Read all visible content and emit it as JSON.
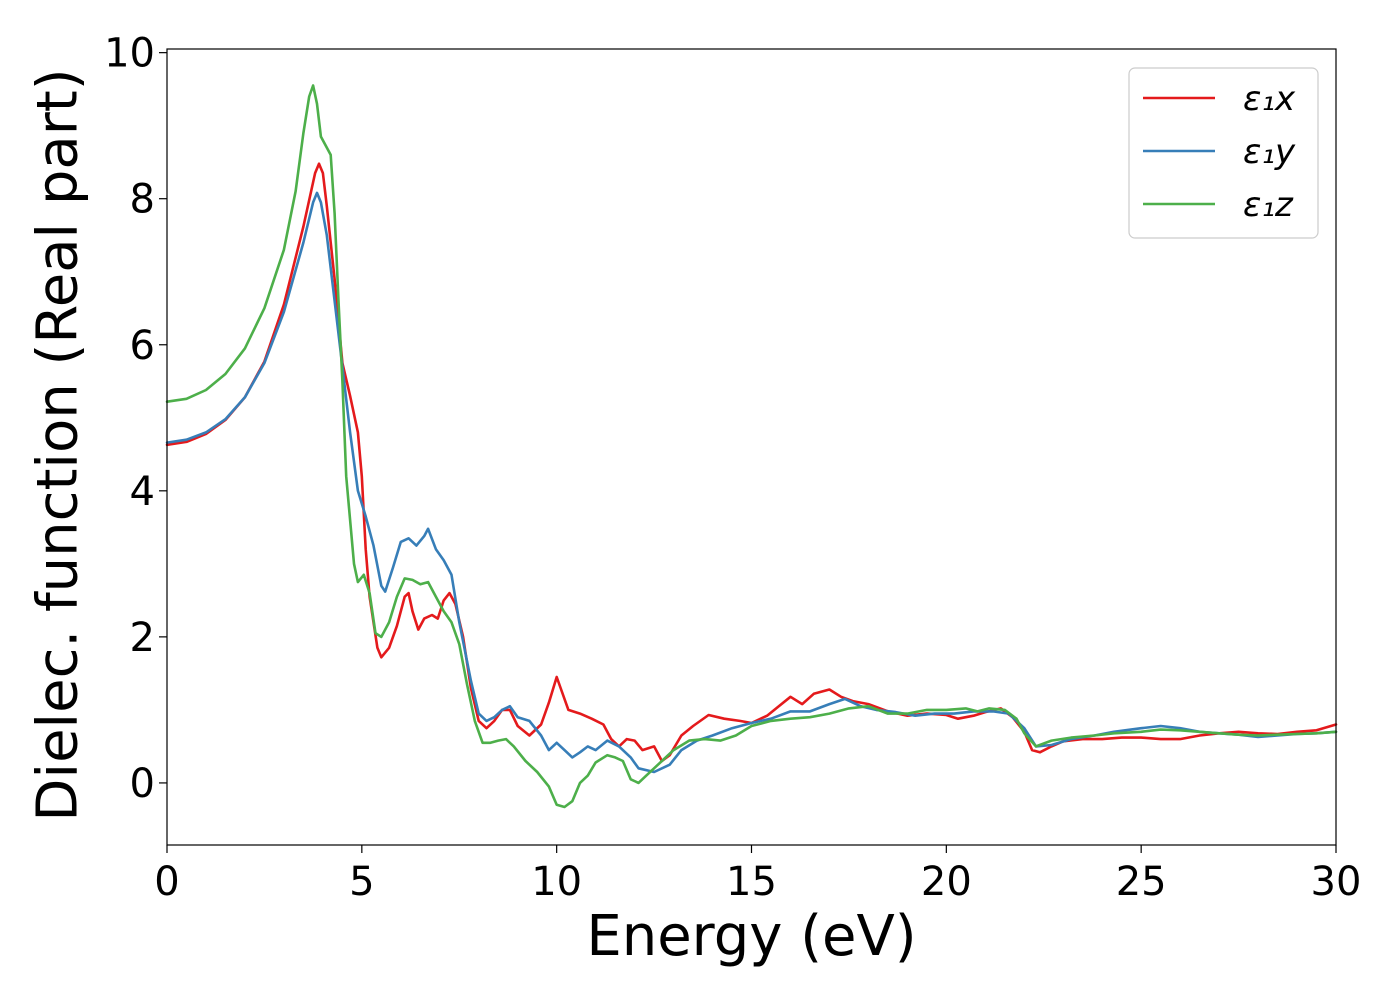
{
  "chart_data": {
    "type": "line",
    "xlabel": "Energy (eV)",
    "ylabel": "Dielec. function (Real part)",
    "xlim": [
      0,
      30
    ],
    "ylim": [
      -0.85,
      10.05
    ],
    "xticks": [
      0,
      5,
      10,
      15,
      20,
      25,
      30
    ],
    "xtick_labels": [
      "0",
      "5",
      "10",
      "15",
      "20",
      "25",
      "30"
    ],
    "yticks": [
      0,
      2,
      4,
      6,
      8,
      10
    ],
    "ytick_labels": [
      "0",
      "2",
      "4",
      "6",
      "8",
      "10"
    ],
    "grid": false,
    "legend_position": "top-right",
    "series": [
      {
        "name": "ε₁x",
        "color": "#e41a1c",
        "points": [
          [
            0,
            4.63
          ],
          [
            0.5,
            4.67
          ],
          [
            1,
            4.78
          ],
          [
            1.5,
            4.97
          ],
          [
            2,
            5.28
          ],
          [
            2.5,
            5.77
          ],
          [
            3,
            6.55
          ],
          [
            3.5,
            7.62
          ],
          [
            3.8,
            8.35
          ],
          [
            3.9,
            8.48
          ],
          [
            4.0,
            8.35
          ],
          [
            4.1,
            7.9
          ],
          [
            4.3,
            6.9
          ],
          [
            4.5,
            5.75
          ],
          [
            4.7,
            5.3
          ],
          [
            4.9,
            4.8
          ],
          [
            5.0,
            4.2
          ],
          [
            5.1,
            3.2
          ],
          [
            5.2,
            2.55
          ],
          [
            5.4,
            1.85
          ],
          [
            5.5,
            1.72
          ],
          [
            5.7,
            1.85
          ],
          [
            5.9,
            2.15
          ],
          [
            6.1,
            2.55
          ],
          [
            6.2,
            2.6
          ],
          [
            6.3,
            2.35
          ],
          [
            6.45,
            2.1
          ],
          [
            6.6,
            2.25
          ],
          [
            6.8,
            2.3
          ],
          [
            6.95,
            2.25
          ],
          [
            7.1,
            2.5
          ],
          [
            7.25,
            2.6
          ],
          [
            7.4,
            2.45
          ],
          [
            7.6,
            2.0
          ],
          [
            7.8,
            1.3
          ],
          [
            8.0,
            0.85
          ],
          [
            8.2,
            0.75
          ],
          [
            8.4,
            0.85
          ],
          [
            8.6,
            1.0
          ],
          [
            8.8,
            1.0
          ],
          [
            9.0,
            0.78
          ],
          [
            9.3,
            0.65
          ],
          [
            9.6,
            0.8
          ],
          [
            9.8,
            1.1
          ],
          [
            10.0,
            1.45
          ],
          [
            10.1,
            1.3
          ],
          [
            10.3,
            1.0
          ],
          [
            10.6,
            0.95
          ],
          [
            10.9,
            0.88
          ],
          [
            11.2,
            0.8
          ],
          [
            11.4,
            0.6
          ],
          [
            11.6,
            0.5
          ],
          [
            11.8,
            0.6
          ],
          [
            12.0,
            0.58
          ],
          [
            12.2,
            0.45
          ],
          [
            12.5,
            0.5
          ],
          [
            12.7,
            0.3
          ],
          [
            12.9,
            0.38
          ],
          [
            13.2,
            0.65
          ],
          [
            13.5,
            0.78
          ],
          [
            13.9,
            0.93
          ],
          [
            14.3,
            0.88
          ],
          [
            14.7,
            0.85
          ],
          [
            15.0,
            0.82
          ],
          [
            15.4,
            0.92
          ],
          [
            15.7,
            1.05
          ],
          [
            16.0,
            1.18
          ],
          [
            16.3,
            1.08
          ],
          [
            16.6,
            1.22
          ],
          [
            17.0,
            1.28
          ],
          [
            17.3,
            1.18
          ],
          [
            17.6,
            1.12
          ],
          [
            18.0,
            1.08
          ],
          [
            18.5,
            0.98
          ],
          [
            19.0,
            0.92
          ],
          [
            19.5,
            0.95
          ],
          [
            20.0,
            0.93
          ],
          [
            20.3,
            0.88
          ],
          [
            20.7,
            0.92
          ],
          [
            21.0,
            0.97
          ],
          [
            21.4,
            1.02
          ],
          [
            21.7,
            0.9
          ],
          [
            22.0,
            0.7
          ],
          [
            22.2,
            0.45
          ],
          [
            22.4,
            0.42
          ],
          [
            22.7,
            0.5
          ],
          [
            23.0,
            0.57
          ],
          [
            23.5,
            0.6
          ],
          [
            24.0,
            0.6
          ],
          [
            24.5,
            0.62
          ],
          [
            25.0,
            0.62
          ],
          [
            25.5,
            0.6
          ],
          [
            26.0,
            0.6
          ],
          [
            26.5,
            0.65
          ],
          [
            27.0,
            0.68
          ],
          [
            27.5,
            0.7
          ],
          [
            28.0,
            0.68
          ],
          [
            28.5,
            0.67
          ],
          [
            29.0,
            0.7
          ],
          [
            29.5,
            0.72
          ],
          [
            30.0,
            0.8
          ]
        ]
      },
      {
        "name": "ε₁y",
        "color": "#377eb8",
        "points": [
          [
            0,
            4.66
          ],
          [
            0.5,
            4.7
          ],
          [
            1,
            4.8
          ],
          [
            1.5,
            4.98
          ],
          [
            2,
            5.28
          ],
          [
            2.5,
            5.75
          ],
          [
            3,
            6.45
          ],
          [
            3.5,
            7.4
          ],
          [
            3.75,
            7.95
          ],
          [
            3.85,
            8.08
          ],
          [
            3.95,
            7.95
          ],
          [
            4.1,
            7.5
          ],
          [
            4.3,
            6.6
          ],
          [
            4.5,
            5.7
          ],
          [
            4.7,
            4.8
          ],
          [
            4.9,
            4.0
          ],
          [
            5.1,
            3.65
          ],
          [
            5.3,
            3.25
          ],
          [
            5.5,
            2.7
          ],
          [
            5.6,
            2.62
          ],
          [
            5.8,
            2.95
          ],
          [
            6.0,
            3.3
          ],
          [
            6.2,
            3.35
          ],
          [
            6.4,
            3.25
          ],
          [
            6.6,
            3.38
          ],
          [
            6.7,
            3.48
          ],
          [
            6.9,
            3.2
          ],
          [
            7.1,
            3.05
          ],
          [
            7.3,
            2.85
          ],
          [
            7.5,
            2.2
          ],
          [
            7.8,
            1.4
          ],
          [
            8.0,
            0.95
          ],
          [
            8.2,
            0.85
          ],
          [
            8.4,
            0.9
          ],
          [
            8.6,
            1.0
          ],
          [
            8.8,
            1.05
          ],
          [
            9.0,
            0.9
          ],
          [
            9.3,
            0.85
          ],
          [
            9.6,
            0.65
          ],
          [
            9.8,
            0.45
          ],
          [
            10.0,
            0.55
          ],
          [
            10.2,
            0.45
          ],
          [
            10.4,
            0.35
          ],
          [
            10.6,
            0.42
          ],
          [
            10.8,
            0.5
          ],
          [
            11.0,
            0.45
          ],
          [
            11.3,
            0.58
          ],
          [
            11.6,
            0.5
          ],
          [
            11.9,
            0.35
          ],
          [
            12.1,
            0.2
          ],
          [
            12.5,
            0.15
          ],
          [
            12.9,
            0.25
          ],
          [
            13.2,
            0.45
          ],
          [
            13.6,
            0.58
          ],
          [
            14.0,
            0.65
          ],
          [
            14.5,
            0.75
          ],
          [
            15.0,
            0.82
          ],
          [
            15.5,
            0.88
          ],
          [
            16.0,
            0.98
          ],
          [
            16.5,
            0.98
          ],
          [
            17.0,
            1.08
          ],
          [
            17.4,
            1.15
          ],
          [
            17.8,
            1.05
          ],
          [
            18.2,
            1.0
          ],
          [
            18.7,
            0.97
          ],
          [
            19.2,
            0.92
          ],
          [
            19.7,
            0.95
          ],
          [
            20.2,
            0.95
          ],
          [
            20.7,
            0.98
          ],
          [
            21.2,
            0.98
          ],
          [
            21.6,
            0.95
          ],
          [
            22.0,
            0.75
          ],
          [
            22.3,
            0.5
          ],
          [
            22.7,
            0.52
          ],
          [
            23.2,
            0.6
          ],
          [
            23.8,
            0.65
          ],
          [
            24.3,
            0.7
          ],
          [
            25.0,
            0.75
          ],
          [
            25.5,
            0.78
          ],
          [
            26.0,
            0.75
          ],
          [
            26.5,
            0.7
          ],
          [
            27.0,
            0.68
          ],
          [
            27.5,
            0.66
          ],
          [
            28.0,
            0.63
          ],
          [
            28.5,
            0.65
          ],
          [
            29.0,
            0.67
          ],
          [
            29.5,
            0.68
          ],
          [
            30.0,
            0.7
          ]
        ]
      },
      {
        "name": "ε₁z",
        "color": "#4daf4a",
        "points": [
          [
            0,
            5.22
          ],
          [
            0.5,
            5.26
          ],
          [
            1,
            5.38
          ],
          [
            1.5,
            5.6
          ],
          [
            2,
            5.95
          ],
          [
            2.5,
            6.5
          ],
          [
            3,
            7.3
          ],
          [
            3.3,
            8.1
          ],
          [
            3.5,
            8.9
          ],
          [
            3.65,
            9.4
          ],
          [
            3.75,
            9.55
          ],
          [
            3.85,
            9.3
          ],
          [
            3.95,
            8.85
          ],
          [
            4.05,
            8.75
          ],
          [
            4.2,
            8.6
          ],
          [
            4.3,
            7.8
          ],
          [
            4.4,
            6.6
          ],
          [
            4.5,
            5.5
          ],
          [
            4.6,
            4.2
          ],
          [
            4.8,
            3.0
          ],
          [
            4.9,
            2.75
          ],
          [
            5.05,
            2.85
          ],
          [
            5.2,
            2.6
          ],
          [
            5.35,
            2.05
          ],
          [
            5.5,
            2.0
          ],
          [
            5.7,
            2.2
          ],
          [
            5.9,
            2.55
          ],
          [
            6.1,
            2.8
          ],
          [
            6.3,
            2.78
          ],
          [
            6.5,
            2.72
          ],
          [
            6.7,
            2.75
          ],
          [
            6.9,
            2.55
          ],
          [
            7.1,
            2.35
          ],
          [
            7.3,
            2.2
          ],
          [
            7.5,
            1.9
          ],
          [
            7.7,
            1.35
          ],
          [
            7.9,
            0.85
          ],
          [
            8.1,
            0.55
          ],
          [
            8.3,
            0.55
          ],
          [
            8.5,
            0.58
          ],
          [
            8.7,
            0.6
          ],
          [
            8.9,
            0.5
          ],
          [
            9.2,
            0.3
          ],
          [
            9.5,
            0.15
          ],
          [
            9.8,
            -0.05
          ],
          [
            10.0,
            -0.3
          ],
          [
            10.2,
            -0.33
          ],
          [
            10.4,
            -0.25
          ],
          [
            10.6,
            0.0
          ],
          [
            10.8,
            0.1
          ],
          [
            11.0,
            0.28
          ],
          [
            11.3,
            0.38
          ],
          [
            11.5,
            0.35
          ],
          [
            11.7,
            0.3
          ],
          [
            11.9,
            0.05
          ],
          [
            12.1,
            0.0
          ],
          [
            12.3,
            0.1
          ],
          [
            12.7,
            0.3
          ],
          [
            13.0,
            0.45
          ],
          [
            13.4,
            0.58
          ],
          [
            13.8,
            0.6
          ],
          [
            14.2,
            0.58
          ],
          [
            14.6,
            0.65
          ],
          [
            15.0,
            0.78
          ],
          [
            15.5,
            0.85
          ],
          [
            16.0,
            0.88
          ],
          [
            16.5,
            0.9
          ],
          [
            17.0,
            0.95
          ],
          [
            17.5,
            1.02
          ],
          [
            18.0,
            1.05
          ],
          [
            18.5,
            0.95
          ],
          [
            19.0,
            0.95
          ],
          [
            19.5,
            1.0
          ],
          [
            20.0,
            1.0
          ],
          [
            20.5,
            1.02
          ],
          [
            20.8,
            0.98
          ],
          [
            21.1,
            1.02
          ],
          [
            21.5,
            1.0
          ],
          [
            21.8,
            0.88
          ],
          [
            22.0,
            0.68
          ],
          [
            22.3,
            0.5
          ],
          [
            22.7,
            0.58
          ],
          [
            23.2,
            0.62
          ],
          [
            23.8,
            0.65
          ],
          [
            24.3,
            0.68
          ],
          [
            25.0,
            0.7
          ],
          [
            25.5,
            0.73
          ],
          [
            26.0,
            0.72
          ],
          [
            26.5,
            0.7
          ],
          [
            27.0,
            0.68
          ],
          [
            27.5,
            0.66
          ],
          [
            28.0,
            0.65
          ],
          [
            28.5,
            0.66
          ],
          [
            29.0,
            0.67
          ],
          [
            29.5,
            0.68
          ],
          [
            30.0,
            0.7
          ]
        ]
      }
    ]
  }
}
